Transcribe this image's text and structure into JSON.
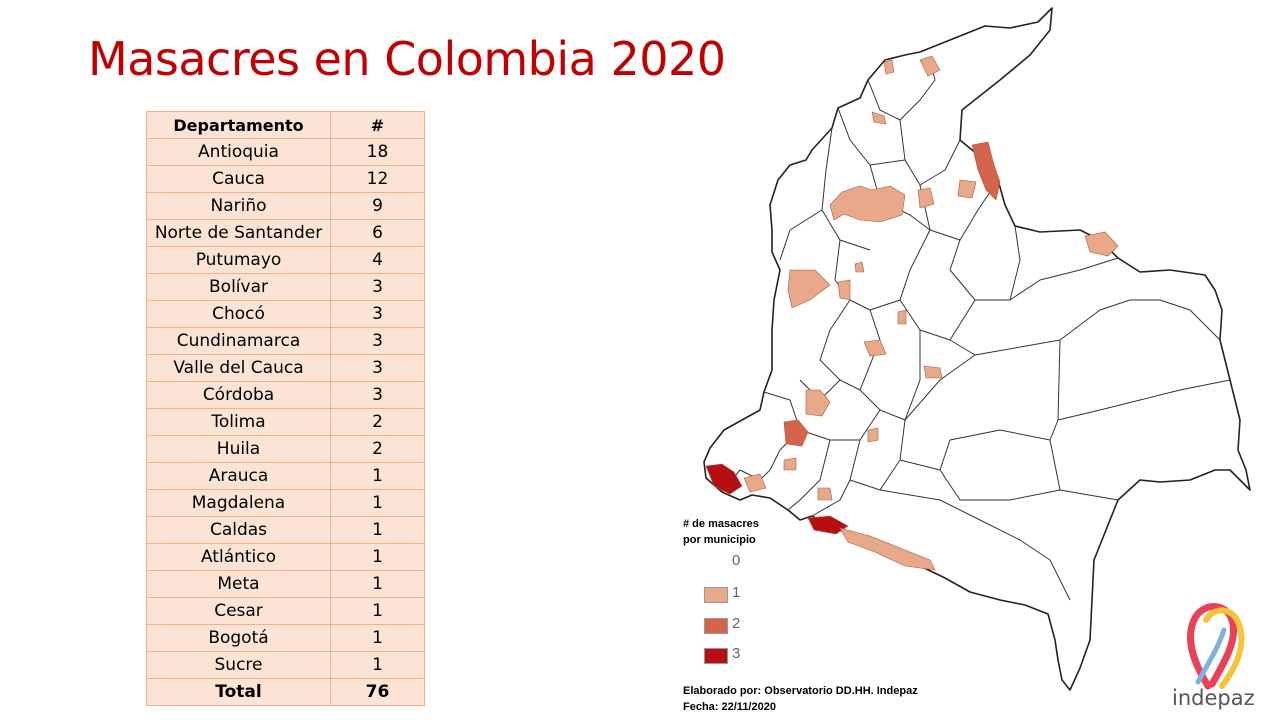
{
  "title": "Masacres en Colombia 2020",
  "table": {
    "headers": [
      "Departamento",
      "#"
    ],
    "rows": [
      [
        "Antioquia",
        "18"
      ],
      [
        "Cauca",
        "12"
      ],
      [
        "Nariño",
        "9"
      ],
      [
        "Norte de Santander",
        "6"
      ],
      [
        "Putumayo",
        "4"
      ],
      [
        "Bolívar",
        "3"
      ],
      [
        "Chocó",
        "3"
      ],
      [
        "Cundinamarca",
        "3"
      ],
      [
        "Valle del Cauca",
        "3"
      ],
      [
        "Córdoba",
        "3"
      ],
      [
        "Tolima",
        "2"
      ],
      [
        "Huila",
        "2"
      ],
      [
        "Arauca",
        "1"
      ],
      [
        "Magdalena",
        "1"
      ],
      [
        "Caldas",
        "1"
      ],
      [
        "Atlántico",
        "1"
      ],
      [
        "Meta",
        "1"
      ],
      [
        "Cesar",
        "1"
      ],
      [
        "Bogotá",
        "1"
      ],
      [
        "Sucre",
        "1"
      ]
    ],
    "total": [
      "Total",
      "76"
    ]
  },
  "legend": {
    "title_line1": "# de masacres",
    "title_line2": "por municipio",
    "items": [
      {
        "label": "0",
        "color": "#ffffff"
      },
      {
        "label": "1",
        "color": "#e8a98a"
      },
      {
        "label": "2",
        "color": "#d5644c"
      },
      {
        "label": "3",
        "color": "#b50f14"
      }
    ]
  },
  "credit": {
    "line1": "Elaborado por: Observatorio DD.HH.  Indepaz",
    "line2": "Fecha: 22/11/2020"
  },
  "logo": {
    "text": "indepaz"
  },
  "colors": {
    "title": "#c00000",
    "table_fill": "#fbe4d5",
    "table_border": "#f4b183"
  }
}
